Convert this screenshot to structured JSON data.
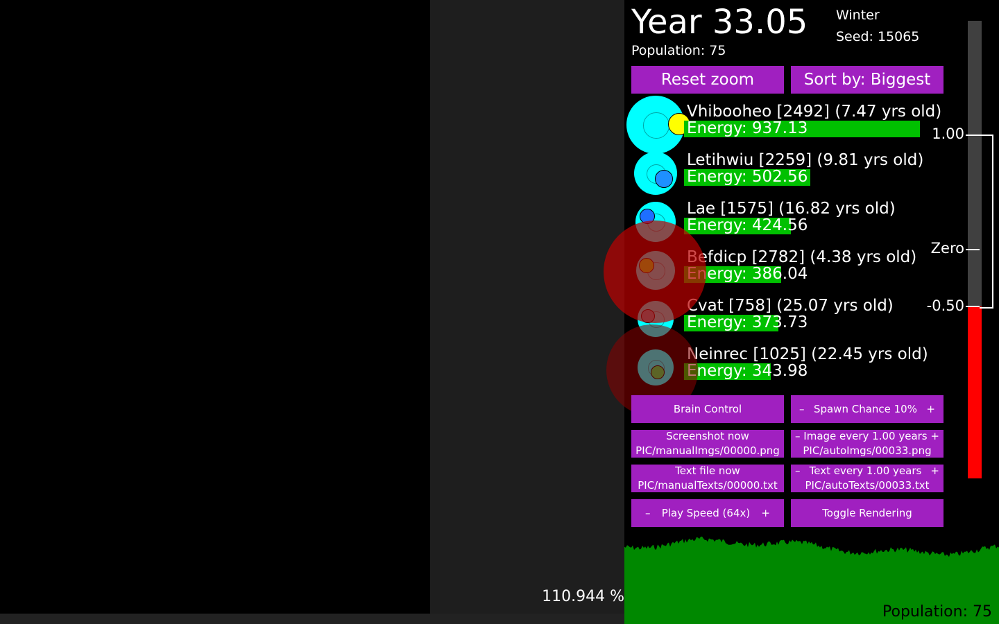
{
  "hud": {
    "year": "Year 33.05",
    "population": "Population: 75",
    "season": "Winter",
    "seed": "Seed: 15065",
    "zoom": "110.944 %"
  },
  "buttons": {
    "reset_zoom": "Reset zoom",
    "sort_by": "Sort by: Biggest",
    "brain_control": "Brain Control",
    "spawn_chance": "Spawn Chance 10%",
    "screenshot_now": "Screenshot now",
    "screenshot_path": "PIC/manualImgs/00000.png",
    "image_every": "Image every 1.00 years",
    "image_path": "PIC/autoImgs/00033.png",
    "text_file_now": "Text file now",
    "text_file_path": "PIC/manualTexts/00000.txt",
    "text_every": "Text every 1.00 years",
    "text_path": "PIC/autoTexts/00033.txt",
    "play_speed": "Play Speed (64x)",
    "toggle_rendering": "Toggle Rendering",
    "minus": "–",
    "plus": "+"
  },
  "creatures": [
    {
      "name": "Vhibooheo [2492] (7.47 yrs old)",
      "energy": "Energy: 937.13",
      "energy_value": 937.13,
      "mouth_color": "#ffff00"
    },
    {
      "name": "Letihwiu [2259] (9.81 yrs old)",
      "energy": "Energy: 502.56",
      "energy_value": 502.56,
      "mouth_color": "#1e90ff"
    },
    {
      "name": "Lae [1575] (16.82 yrs old)",
      "energy": "Energy: 424.56",
      "energy_value": 424.56,
      "mouth_color": "#1e6fff"
    },
    {
      "name": "Befdicp [2782] (4.38 yrs old)",
      "energy": "Energy: 386.04",
      "energy_value": 386.04,
      "mouth_color": "#55ee22"
    },
    {
      "name": "Cvat [758] (25.07 yrs old)",
      "energy": "Energy: 373.73",
      "energy_value": 373.73,
      "mouth_color": "#2aa0b0"
    },
    {
      "name": "Neinrec [1025] (22.45 yrs old)",
      "energy": "Energy: 343.98",
      "energy_value": 343.98,
      "mouth_color": "#22dd55"
    }
  ],
  "meter": {
    "label_top": "1.00",
    "label_zero": "Zero",
    "label_bottom": "-0.50",
    "value": -0.5,
    "fill_color": "#ff0000"
  },
  "population_graph": {
    "label": "Population: 75",
    "color": "#008800"
  },
  "colors": {
    "button": "#a020c0",
    "energy_bar": "#00c000",
    "creature_body": "#00ffff"
  }
}
